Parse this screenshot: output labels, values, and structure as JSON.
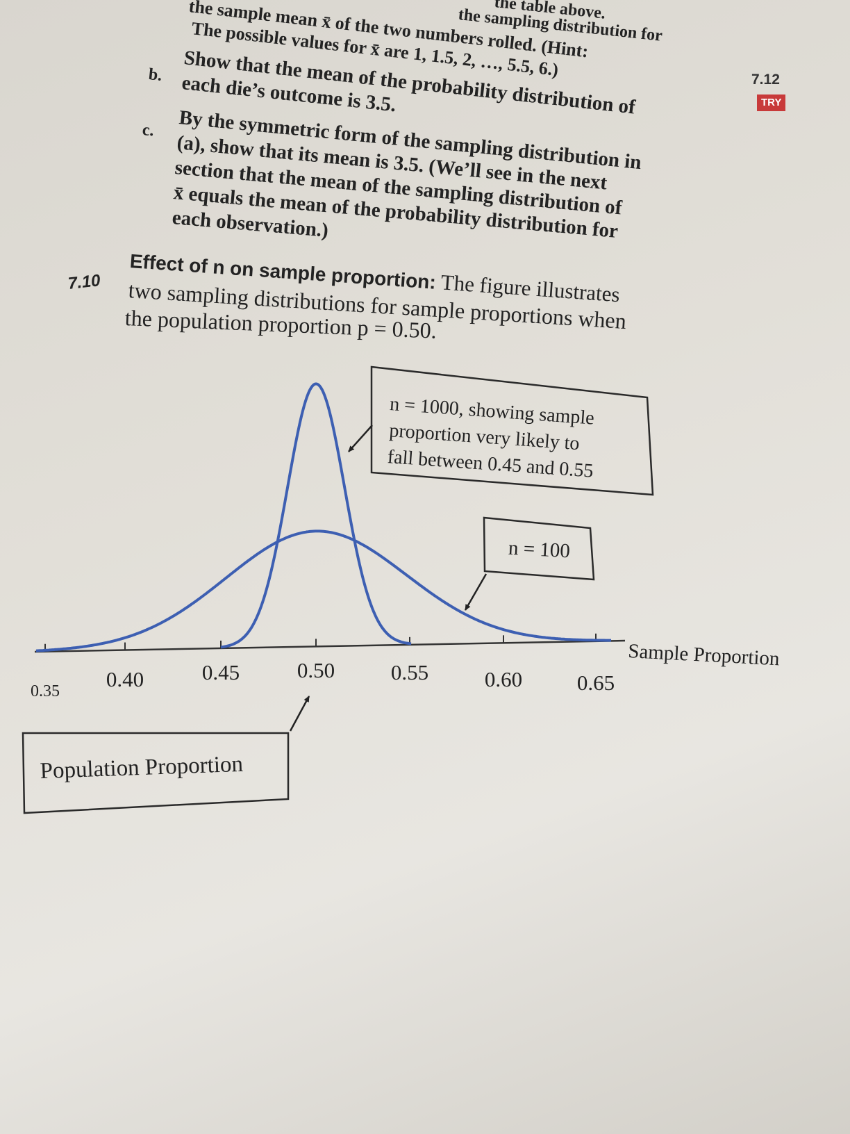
{
  "exercise_7_9": {
    "part_a_lines": [
      "the table above.",
      "the sampling distribution for",
      "the sample mean x̄ of the two numbers rolled. (Hint:",
      "The possible values for x̄ are 1, 1.5, 2, …, 5.5, 6.)"
    ],
    "part_b": {
      "label": "b.",
      "lines": [
        "Show that the mean of the probability distribution of",
        "each die’s outcome is 3.5."
      ]
    },
    "part_c": {
      "label": "c.",
      "lines": [
        "By the symmetric form of the sampling distribution in",
        "(a), show that its mean is 3.5. (We’ll see in the next",
        "section that the mean of the sampling distribution of",
        "x̄ equals the mean of the probability distribution for",
        "each observation.)"
      ]
    }
  },
  "margin": {
    "number": "7.12",
    "tag": "TRY"
  },
  "exercise_7_10": {
    "number": "7.10",
    "title": "Effect of n on sample proportion:",
    "lines": [
      "The figure illustrates",
      "two sampling distributions for sample proportions when",
      "the population proportion p = 0.50."
    ]
  },
  "figure": {
    "callout_n1000": [
      "n = 1000, showing sample",
      "proportion very likely to",
      "fall between 0.45 and 0.55"
    ],
    "callout_n100": "n = 100",
    "axis_label": "Sample Proportion",
    "ticks": [
      "0.35",
      "0.40",
      "0.45",
      "0.50",
      "0.55",
      "0.60",
      "0.65"
    ],
    "population_label": "Population Proportion"
  }
}
